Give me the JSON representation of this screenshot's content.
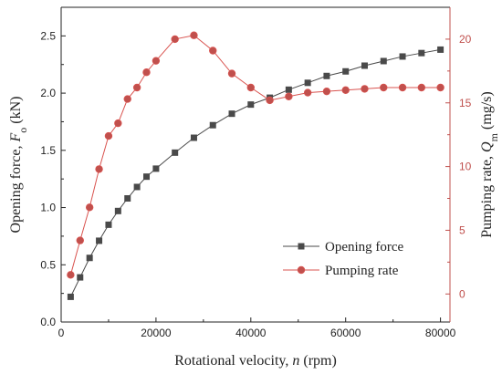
{
  "chart_data": {
    "type": "line",
    "title": "",
    "xlabel": "Rotational velocity, n (rpm)",
    "xlabel_parts": {
      "prefix": "Rotational velocity, ",
      "symbol": "n",
      "suffix": " (rpm)"
    },
    "ylabel_left": "Opening force, Fo (kN)",
    "ylabel_left_parts": {
      "prefix": "Opening force, ",
      "symbol": "F",
      "sub": "o",
      "suffix": " (kN)"
    },
    "ylabel_right": "Pumping rate, Qm (mg/s)",
    "ylabel_right_parts": {
      "prefix": "Pumping rate, ",
      "symbol": "Q",
      "sub": "m",
      "suffix": " (mg/s)"
    },
    "xlim": [
      0,
      82000
    ],
    "ylim_left": [
      0,
      2.75
    ],
    "ylim_right": [
      -2.2,
      22.5
    ],
    "x_ticks": [
      0,
      20000,
      40000,
      60000,
      80000
    ],
    "y_left_ticks": [
      0.0,
      0.5,
      1.0,
      1.5,
      2.0,
      2.5
    ],
    "y_right_ticks": [
      0,
      5,
      10,
      15,
      20
    ],
    "legend_position": "lower-right",
    "series": [
      {
        "name": "Opening force",
        "axis": "left",
        "color": "#4a4a4a",
        "marker": "square",
        "x": [
          2000,
          4000,
          6000,
          8000,
          10000,
          12000,
          14000,
          16000,
          18000,
          20000,
          24000,
          28000,
          32000,
          36000,
          40000,
          44000,
          48000,
          52000,
          56000,
          60000,
          64000,
          68000,
          72000,
          76000,
          80000
        ],
        "y": [
          0.22,
          0.39,
          0.56,
          0.71,
          0.85,
          0.97,
          1.08,
          1.18,
          1.27,
          1.34,
          1.48,
          1.61,
          1.72,
          1.82,
          1.9,
          1.96,
          2.03,
          2.09,
          2.15,
          2.19,
          2.24,
          2.28,
          2.32,
          2.35,
          2.38
        ]
      },
      {
        "name": "Pumping rate",
        "axis": "right",
        "color": "#d9534f",
        "marker_fill": "#c0504d",
        "marker": "circle",
        "x": [
          2000,
          4000,
          6000,
          8000,
          10000,
          12000,
          14000,
          16000,
          18000,
          20000,
          24000,
          28000,
          32000,
          36000,
          40000,
          44000,
          48000,
          52000,
          56000,
          60000,
          64000,
          68000,
          72000,
          76000,
          80000
        ],
        "y": [
          1.5,
          4.2,
          6.8,
          9.8,
          12.4,
          13.4,
          15.3,
          16.2,
          17.4,
          18.3,
          20.0,
          20.3,
          19.1,
          17.3,
          16.2,
          15.2,
          15.5,
          15.8,
          15.9,
          16.0,
          16.1,
          16.2,
          16.2,
          16.2,
          16.2
        ]
      }
    ]
  }
}
